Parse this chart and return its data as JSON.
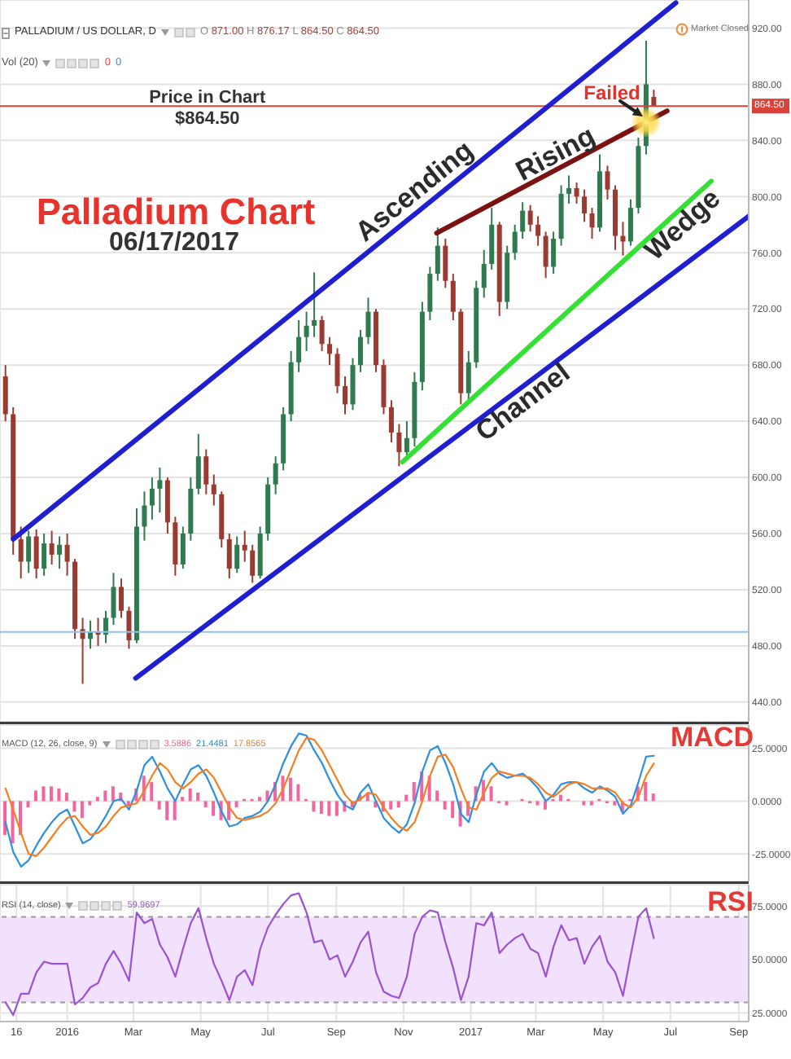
{
  "chart_data": [
    {
      "type": "candlestick",
      "title": "Palladium Chart",
      "subtitle": "06/17/2017",
      "x": [
        "2015-11-06",
        "2015-11-13",
        "2015-11-20",
        "2015-11-27",
        "2015-12-04",
        "2015-12-11",
        "2015-12-18",
        "2015-12-25",
        "2016-01-01",
        "2016-01-08",
        "2016-01-15",
        "2016-01-22",
        "2016-01-29",
        "2016-02-05",
        "2016-02-12",
        "2016-02-19",
        "2016-02-26",
        "2016-03-04",
        "2016-03-11",
        "2016-03-18",
        "2016-03-25",
        "2016-04-01",
        "2016-04-08",
        "2016-04-15",
        "2016-04-22",
        "2016-04-29",
        "2016-05-06",
        "2016-05-13",
        "2016-05-20",
        "2016-05-27",
        "2016-06-03",
        "2016-06-10",
        "2016-06-17",
        "2016-06-24",
        "2016-07-01",
        "2016-07-08",
        "2016-07-15",
        "2016-07-22",
        "2016-07-29",
        "2016-08-05",
        "2016-08-12",
        "2016-08-19",
        "2016-08-26",
        "2016-09-02",
        "2016-09-09",
        "2016-09-16",
        "2016-09-23",
        "2016-09-30",
        "2016-10-07",
        "2016-10-14",
        "2016-10-21",
        "2016-10-28",
        "2016-11-04",
        "2016-11-11",
        "2016-11-18",
        "2016-11-25",
        "2016-12-02",
        "2016-12-09",
        "2016-12-16",
        "2016-12-23",
        "2016-12-30",
        "2017-01-06",
        "2017-01-13",
        "2017-01-20",
        "2017-01-27",
        "2017-02-03",
        "2017-02-10",
        "2017-02-17",
        "2017-02-24",
        "2017-03-03",
        "2017-03-10",
        "2017-03-17",
        "2017-03-24",
        "2017-03-31",
        "2017-04-07",
        "2017-04-14",
        "2017-04-21",
        "2017-04-28",
        "2017-05-05",
        "2017-05-12",
        "2017-05-19",
        "2017-05-26",
        "2017-06-02",
        "2017-06-09",
        "2017-06-16"
      ],
      "ohlc": [
        [
          672,
          680,
          640,
          645
        ],
        [
          645,
          650,
          545,
          556
        ],
        [
          556,
          565,
          528,
          540
        ],
        [
          540,
          562,
          532,
          558
        ],
        [
          558,
          563,
          528,
          535
        ],
        [
          535,
          560,
          530,
          553
        ],
        [
          553,
          562,
          538,
          545
        ],
        [
          545,
          558,
          535,
          552
        ],
        [
          552,
          560,
          530,
          540
        ],
        [
          540,
          542,
          485,
          492
        ],
        [
          492,
          500,
          453,
          485
        ],
        [
          485,
          498,
          478,
          490
        ],
        [
          490,
          500,
          480,
          488
        ],
        [
          488,
          505,
          482,
          500
        ],
        [
          500,
          532,
          495,
          522
        ],
        [
          522,
          528,
          500,
          505
        ],
        [
          505,
          508,
          478,
          484
        ],
        [
          484,
          578,
          482,
          565
        ],
        [
          565,
          590,
          555,
          580
        ],
        [
          580,
          600,
          570,
          592
        ],
        [
          592,
          607,
          575,
          598
        ],
        [
          598,
          600,
          560,
          568
        ],
        [
          568,
          572,
          530,
          538
        ],
        [
          538,
          565,
          535,
          560
        ],
        [
          560,
          600,
          555,
          592
        ],
        [
          592,
          631,
          588,
          615
        ],
        [
          615,
          620,
          588,
          595
        ],
        [
          595,
          602,
          580,
          588
        ],
        [
          588,
          590,
          550,
          556
        ],
        [
          556,
          560,
          528,
          535
        ],
        [
          535,
          558,
          532,
          552
        ],
        [
          552,
          562,
          540,
          548
        ],
        [
          548,
          552,
          525,
          530
        ],
        [
          530,
          565,
          528,
          560
        ],
        [
          560,
          600,
          555,
          595
        ],
        [
          595,
          615,
          588,
          610
        ],
        [
          610,
          650,
          605,
          645
        ],
        [
          645,
          690,
          640,
          682
        ],
        [
          682,
          712,
          675,
          700
        ],
        [
          700,
          718,
          690,
          708
        ],
        [
          708,
          746,
          700,
          712
        ],
        [
          712,
          715,
          690,
          695
        ],
        [
          695,
          700,
          680,
          688
        ],
        [
          688,
          692,
          660,
          665
        ],
        [
          665,
          672,
          645,
          652
        ],
        [
          652,
          685,
          648,
          680
        ],
        [
          680,
          705,
          675,
          700
        ],
        [
          700,
          728,
          695,
          718
        ],
        [
          718,
          720,
          675,
          680
        ],
        [
          680,
          684,
          645,
          650
        ],
        [
          650,
          655,
          625,
          632
        ],
        [
          632,
          638,
          608,
          618
        ],
        [
          618,
          640,
          612,
          628
        ],
        [
          628,
          675,
          622,
          668
        ],
        [
          668,
          725,
          662,
          718
        ],
        [
          718,
          750,
          712,
          745
        ],
        [
          745,
          778,
          740,
          765
        ],
        [
          765,
          770,
          735,
          740
        ],
        [
          740,
          745,
          712,
          718
        ],
        [
          718,
          720,
          652,
          660
        ],
        [
          660,
          690,
          655,
          682
        ],
        [
          682,
          740,
          678,
          735
        ],
        [
          735,
          762,
          728,
          752
        ],
        [
          752,
          792,
          748,
          780
        ],
        [
          780,
          782,
          715,
          725
        ],
        [
          725,
          765,
          720,
          760
        ],
        [
          760,
          780,
          755,
          775
        ],
        [
          775,
          796,
          770,
          790
        ],
        [
          790,
          794,
          775,
          780
        ],
        [
          780,
          786,
          765,
          772
        ],
        [
          772,
          775,
          742,
          750
        ],
        [
          750,
          775,
          745,
          770
        ],
        [
          770,
          808,
          765,
          802
        ],
        [
          802,
          815,
          795,
          806
        ],
        [
          806,
          810,
          795,
          800
        ],
        [
          800,
          805,
          782,
          788
        ],
        [
          788,
          792,
          770,
          778
        ],
        [
          778,
          830,
          775,
          818
        ],
        [
          818,
          822,
          798,
          805
        ],
        [
          805,
          808,
          762,
          772
        ],
        [
          772,
          782,
          758,
          768
        ],
        [
          768,
          798,
          765,
          792
        ],
        [
          792,
          842,
          788,
          836
        ],
        [
          836,
          911,
          830,
          880
        ],
        [
          871,
          876.17,
          864.5,
          864.5
        ]
      ],
      "colors": [
        "#9a3a30",
        "#9a3a30",
        "#9a3a30",
        "#2f7a4f",
        "#9a3a30",
        "#2f7a4f",
        "#9a3a30",
        "#2f7a4f",
        "#9a3a30",
        "#9a3a30",
        "#9a3a30",
        "#2f7a4f",
        "#9a3a30",
        "#2f7a4f",
        "#2f7a4f",
        "#9a3a30",
        "#9a3a30",
        "#2f7a4f",
        "#2f7a4f",
        "#2f7a4f",
        "#2f7a4f",
        "#9a3a30",
        "#9a3a30",
        "#2f7a4f",
        "#2f7a4f",
        "#2f7a4f",
        "#9a3a30",
        "#9a3a30",
        "#9a3a30",
        "#9a3a30",
        "#2f7a4f",
        "#9a3a30",
        "#9a3a30",
        "#2f7a4f",
        "#2f7a4f",
        "#2f7a4f",
        "#2f7a4f",
        "#2f7a4f",
        "#2f7a4f",
        "#2f7a4f",
        "#2f7a4f",
        "#9a3a30",
        "#9a3a30",
        "#9a3a30",
        "#9a3a30",
        "#2f7a4f",
        "#2f7a4f",
        "#2f7a4f",
        "#9a3a30",
        "#9a3a30",
        "#9a3a30",
        "#9a3a30",
        "#2f7a4f",
        "#2f7a4f",
        "#2f7a4f",
        "#2f7a4f",
        "#2f7a4f",
        "#9a3a30",
        "#9a3a30",
        "#9a3a30",
        "#2f7a4f",
        "#2f7a4f",
        "#2f7a4f",
        "#2f7a4f",
        "#9a3a30",
        "#2f7a4f",
        "#2f7a4f",
        "#2f7a4f",
        "#9a3a30",
        "#9a3a30",
        "#9a3a30",
        "#2f7a4f",
        "#2f7a4f",
        "#2f7a4f",
        "#9a3a30",
        "#9a3a30",
        "#9a3a30",
        "#2f7a4f",
        "#9a3a30",
        "#9a3a30",
        "#9a3a30",
        "#2f7a4f",
        "#2f7a4f",
        "#2f7a4f",
        "#9a3a30"
      ],
      "series": [
        {
          "type": "line",
          "x": [
            "2015-11-13",
            "2017-07-06"
          ],
          "values": [
            556,
            938
          ],
          "color": "#1f1fd1"
        },
        {
          "type": "line",
          "x": [
            "2016-03-03",
            "2017-09-10"
          ],
          "values": [
            457,
            786
          ],
          "color": "#1f1fd1"
        },
        {
          "type": "line",
          "x": [
            "2016-12-01",
            "2017-06-28"
          ],
          "values": [
            774,
            861
          ],
          "color": "#7a1212"
        },
        {
          "type": "line",
          "x": [
            "2016-10-31",
            "2017-08-07"
          ],
          "values": [
            611,
            811
          ],
          "color": "#33e033"
        }
      ],
      "xlim": [
        "2015-11-01",
        "2017-09-10"
      ],
      "xticks": [
        {
          "value": "2015-11-16",
          "label": null
        },
        {
          "value": "2016-01-01",
          "label": null
        },
        {
          "value": "2016-03-01",
          "label": null
        },
        {
          "value": "2016-05-01",
          "label": null
        },
        {
          "value": "2016-07-01",
          "label": null
        },
        {
          "value": "2016-09-01",
          "label": null
        },
        {
          "value": "2016-11-01",
          "label": null
        },
        {
          "value": "2017-01-01",
          "label": null
        },
        {
          "value": "2017-03-01",
          "label": null
        },
        {
          "value": "2017-05-01",
          "label": null
        },
        {
          "value": "2017-07-01",
          "label": null
        },
        {
          "value": "2017-09-01",
          "label": null
        }
      ],
      "ylim": [
        426,
        940
      ],
      "yticks": [
        {
          "value": 440,
          "label": "440.00"
        },
        {
          "value": 480,
          "label": "480.00"
        },
        {
          "value": 520,
          "label": "520.00"
        },
        {
          "value": 560,
          "label": "560.00"
        },
        {
          "value": 600,
          "label": "600.00"
        },
        {
          "value": 640,
          "label": "640.00"
        },
        {
          "value": 680,
          "label": "680.00"
        },
        {
          "value": 720,
          "label": "720.00"
        },
        {
          "value": 760,
          "label": "760.00"
        },
        {
          "value": 800,
          "label": "800.00"
        },
        {
          "value": 840,
          "label": "840.00"
        },
        {
          "value": 880,
          "label": "880.00"
        },
        {
          "value": 920,
          "label": "920.00"
        }
      ],
      "tick_labels": "y",
      "grid": true,
      "ref_lines": [
        {
          "axis": "y",
          "value": 864.5,
          "label": "864.50",
          "color": "#d9423a"
        },
        {
          "axis": "y",
          "value": 490,
          "color": "#8ec3e6"
        }
      ],
      "annotations": [
        "PALLADIUM / US DOLLAR, D",
        "O 871.00 H 876.17 L 864.50 C 864.50",
        "Vol (20)",
        "0",
        "0",
        "Market Closed",
        {
          "text": "Price in Chart",
          "x": "2016-05-07",
          "y": 864.5
        },
        {
          "text": "$864.50",
          "x": "2016-05-07",
          "y": 864.5
        },
        {
          "text": "Ascending",
          "x": "2016-11-21",
          "y": 794
        },
        {
          "text": "Channel",
          "x": "2017-02-10",
          "y": 661
        },
        {
          "text": "Rising",
          "x": "2017-03-25",
          "y": 821.5
        },
        {
          "text": "Wedge",
          "x": "2017-07-04",
          "y": 787
        },
        {
          "text": "Failed",
          "x": "2017-06-09",
          "y": 853
        }
      ]
    },
    {
      "type": "line",
      "x": [
        "2015-11-06",
        "2015-11-13",
        "2015-11-20",
        "2015-11-27",
        "2015-12-04",
        "2015-12-11",
        "2015-12-18",
        "2015-12-25",
        "2016-01-01",
        "2016-01-08",
        "2016-01-15",
        "2016-01-22",
        "2016-01-29",
        "2016-02-05",
        "2016-02-12",
        "2016-02-19",
        "2016-02-26",
        "2016-03-04",
        "2016-03-11",
        "2016-03-18",
        "2016-03-25",
        "2016-04-01",
        "2016-04-08",
        "2016-04-15",
        "2016-04-22",
        "2016-04-29",
        "2016-05-06",
        "2016-05-13",
        "2016-05-20",
        "2016-05-27",
        "2016-06-03",
        "2016-06-10",
        "2016-06-17",
        "2016-06-24",
        "2016-07-01",
        "2016-07-08",
        "2016-07-15",
        "2016-07-22",
        "2016-07-29",
        "2016-08-05",
        "2016-08-12",
        "2016-08-19",
        "2016-08-26",
        "2016-09-02",
        "2016-09-09",
        "2016-09-16",
        "2016-09-23",
        "2016-09-30",
        "2016-10-07",
        "2016-10-14",
        "2016-10-21",
        "2016-10-28",
        "2016-11-04",
        "2016-11-11",
        "2016-11-18",
        "2016-11-25",
        "2016-12-02",
        "2016-12-09",
        "2016-12-16",
        "2016-12-23",
        "2016-12-30",
        "2017-01-06",
        "2017-01-13",
        "2017-01-20",
        "2017-01-27",
        "2017-02-03",
        "2017-02-10",
        "2017-02-17",
        "2017-02-24",
        "2017-03-03",
        "2017-03-10",
        "2017-03-17",
        "2017-03-24",
        "2017-03-31",
        "2017-04-07",
        "2017-04-14",
        "2017-04-21",
        "2017-04-28",
        "2017-05-05",
        "2017-05-12",
        "2017-05-19",
        "2017-05-26",
        "2017-06-02",
        "2017-06-09",
        "2017-06-16"
      ],
      "series": [
        {
          "type": "bar",
          "color": "#f4649e",
          "values": [
            -16,
            -20,
            -16,
            -3,
            5,
            7,
            7,
            6,
            4,
            -5,
            -8,
            -2,
            2,
            5,
            7,
            4,
            -2,
            6,
            12,
            9,
            -4,
            -9,
            -9,
            2,
            6,
            4,
            -3,
            -7,
            -9,
            -9,
            -3,
            1,
            1,
            2,
            5,
            9,
            12,
            11,
            8,
            1,
            -5,
            -6,
            -7,
            -7,
            -5,
            -3,
            3,
            4,
            -3,
            -5,
            -4,
            -3,
            3,
            9,
            14,
            12,
            5,
            -4,
            -8,
            -12,
            -7,
            7,
            10,
            7,
            -1,
            -2,
            0,
            1,
            -1,
            -2,
            -4,
            1,
            3,
            1,
            0,
            -2,
            -2,
            1,
            -1,
            -2,
            -5,
            1,
            7,
            9,
            3.5886
          ]
        },
        {
          "type": "line",
          "color": "#2d8fe0",
          "values": [
            -10,
            -24,
            -31,
            -28,
            -21,
            -15,
            -10,
            -6,
            -4,
            -12,
            -20,
            -18,
            -13,
            -7,
            0,
            1,
            -4,
            5,
            17,
            21,
            14,
            6,
            0,
            8,
            15,
            17,
            12,
            4,
            -5,
            -12,
            -11,
            -8,
            -7,
            -5,
            0,
            8,
            18,
            26,
            32,
            31,
            24,
            18,
            10,
            3,
            -2,
            -4,
            4,
            8,
            0,
            -8,
            -12,
            -15,
            -11,
            -1,
            14,
            24,
            26,
            18,
            8,
            -6,
            -10,
            3,
            14,
            18,
            13,
            11,
            12,
            13,
            10,
            6,
            0,
            3,
            8,
            9,
            9,
            6,
            4,
            7,
            5,
            2,
            -6,
            -2,
            9,
            21,
            21.4481
          ]
        },
        {
          "type": "line",
          "color": "#f57f20",
          "values": [
            6,
            -4,
            -15,
            -25,
            -26,
            -22,
            -17,
            -12,
            -8,
            -7,
            -12,
            -16,
            -15,
            -12,
            -7,
            -3,
            -2,
            -1,
            5,
            12,
            18,
            15,
            9,
            6,
            9,
            13,
            15,
            11,
            4,
            -3,
            -8,
            -9,
            -8,
            -7,
            -5,
            -1,
            6,
            15,
            24,
            30,
            29,
            24,
            17,
            10,
            3,
            -1,
            1,
            4,
            3,
            -3,
            -8,
            -12,
            -14,
            -10,
            0,
            12,
            21,
            22,
            16,
            6,
            -3,
            -4,
            4,
            11,
            14,
            13,
            12,
            12,
            11,
            8,
            4,
            2,
            5,
            8,
            9,
            8,
            6,
            6,
            6,
            4,
            -1,
            -3,
            2,
            12,
            17.8565
          ]
        }
      ],
      "xlim": [
        "2015-11-01",
        "2017-09-10"
      ],
      "xticks": [
        {
          "value": "2015-11-16",
          "label": null
        },
        {
          "value": "2016-01-01",
          "label": null
        },
        {
          "value": "2016-03-01",
          "label": null
        },
        {
          "value": "2016-05-01",
          "label": null
        },
        {
          "value": "2016-07-01",
          "label": null
        },
        {
          "value": "2016-09-01",
          "label": null
        },
        {
          "value": "2016-11-01",
          "label": null
        },
        {
          "value": "2017-01-01",
          "label": null
        },
        {
          "value": "2017-03-01",
          "label": null
        },
        {
          "value": "2017-05-01",
          "label": null
        },
        {
          "value": "2017-07-01",
          "label": null
        },
        {
          "value": "2017-09-01",
          "label": null
        }
      ],
      "ylim": [
        -38,
        36
      ],
      "yticks": [
        {
          "value": 25,
          "label": "25.0000"
        },
        {
          "value": 0,
          "label": "0.0000"
        },
        {
          "value": -25,
          "label": "-25.0000"
        }
      ],
      "tick_labels": "y",
      "grid": true,
      "annotations": [
        "MACD",
        "MACD (12, 26, close, 9)",
        "3.5886",
        "21.4481",
        "17.8565"
      ]
    },
    {
      "type": "line",
      "x": [
        "2015-11-06",
        "2015-11-13",
        "2015-11-20",
        "2015-11-27",
        "2015-12-04",
        "2015-12-11",
        "2015-12-18",
        "2015-12-25",
        "2016-01-01",
        "2016-01-08",
        "2016-01-15",
        "2016-01-22",
        "2016-01-29",
        "2016-02-05",
        "2016-02-12",
        "2016-02-19",
        "2016-02-26",
        "2016-03-04",
        "2016-03-11",
        "2016-03-18",
        "2016-03-25",
        "2016-04-01",
        "2016-04-08",
        "2016-04-15",
        "2016-04-22",
        "2016-04-29",
        "2016-05-06",
        "2016-05-13",
        "2016-05-20",
        "2016-05-27",
        "2016-06-03",
        "2016-06-10",
        "2016-06-17",
        "2016-06-24",
        "2016-07-01",
        "2016-07-08",
        "2016-07-15",
        "2016-07-22",
        "2016-07-29",
        "2016-08-05",
        "2016-08-12",
        "2016-08-19",
        "2016-08-26",
        "2016-09-02",
        "2016-09-09",
        "2016-09-16",
        "2016-09-23",
        "2016-09-30",
        "2016-10-07",
        "2016-10-14",
        "2016-10-21",
        "2016-10-28",
        "2016-11-04",
        "2016-11-11",
        "2016-11-18",
        "2016-11-25",
        "2016-12-02",
        "2016-12-09",
        "2016-12-16",
        "2016-12-23",
        "2016-12-30",
        "2017-01-06",
        "2017-01-13",
        "2017-01-20",
        "2017-01-27",
        "2017-02-03",
        "2017-02-10",
        "2017-02-17",
        "2017-02-24",
        "2017-03-03",
        "2017-03-10",
        "2017-03-17",
        "2017-03-24",
        "2017-03-31",
        "2017-04-07",
        "2017-04-14",
        "2017-04-21",
        "2017-04-28",
        "2017-05-05",
        "2017-05-12",
        "2017-05-19",
        "2017-05-26",
        "2017-06-02",
        "2017-06-09",
        "2017-06-16"
      ],
      "series": [
        {
          "color": "#9c50d2",
          "values": [
            30,
            24,
            34,
            34,
            44,
            49,
            48,
            48,
            48,
            29,
            32,
            37,
            39,
            48,
            54,
            48,
            40,
            72,
            67,
            69,
            57,
            51,
            42,
            55,
            67,
            74,
            60,
            48,
            40,
            31,
            42,
            45,
            38,
            55,
            65,
            71,
            76,
            80,
            81,
            72,
            58,
            59,
            50,
            52,
            42,
            49,
            58,
            63,
            44,
            35,
            33,
            32,
            42,
            62,
            70,
            73,
            72,
            58,
            46,
            31,
            42,
            67,
            66,
            72,
            53,
            57,
            60,
            62,
            55,
            53,
            42,
            56,
            66,
            59,
            60,
            48,
            56,
            61,
            49,
            44,
            33,
            52,
            70,
            74,
            59.9697
          ]
        }
      ],
      "xlim": [
        "2015-11-01",
        "2017-09-10"
      ],
      "xticks": [
        {
          "value": "2015-11-16",
          "label": "16"
        },
        {
          "value": "2016-01-01",
          "label": "2016"
        },
        {
          "value": "2016-03-01",
          "label": "Mar"
        },
        {
          "value": "2016-05-01",
          "label": "May"
        },
        {
          "value": "2016-07-01",
          "label": "Jul"
        },
        {
          "value": "2016-09-01",
          "label": "Sep"
        },
        {
          "value": "2016-11-01",
          "label": "Nov"
        },
        {
          "value": "2017-01-01",
          "label": "2017"
        },
        {
          "value": "2017-03-01",
          "label": "Mar"
        },
        {
          "value": "2017-05-01",
          "label": "May"
        },
        {
          "value": "2017-07-01",
          "label": "Jul"
        },
        {
          "value": "2017-09-01",
          "label": "Sep"
        }
      ],
      "ylim": [
        21,
        85
      ],
      "yticks": [
        {
          "value": 75,
          "label": "75.0000"
        },
        {
          "value": 50,
          "label": "50.0000"
        },
        {
          "value": 25,
          "label": "25.0000"
        }
      ],
      "grid": true,
      "bands": [
        {
          "axis": "y",
          "from": 30,
          "to": 70,
          "color": "#f1e1ff"
        }
      ],
      "ref_lines": [
        {
          "axis": "y",
          "value": 70,
          "color": "#9a9a9a",
          "line_style": "dashed"
        },
        {
          "axis": "y",
          "value": 30,
          "color": "#9a9a9a",
          "line_style": "dashed"
        }
      ],
      "annotations": [
        "RSI",
        "RSI (14, close)",
        "59.9697"
      ]
    }
  ]
}
